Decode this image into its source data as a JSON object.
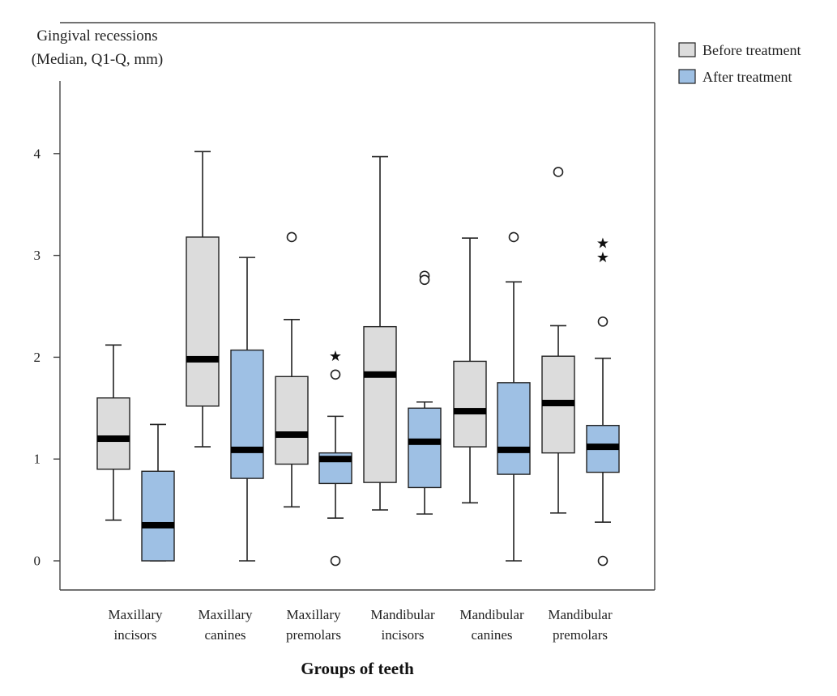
{
  "chart_data": {
    "type": "box",
    "title": "",
    "ylabel_lines": [
      "Gingival recessions",
      "(Median, Q1-Q, mm)"
    ],
    "xlabel": "Groups of teeth",
    "ylim": [
      -0.28,
      5.3
    ],
    "yticks": [
      0,
      1,
      2,
      3,
      4
    ],
    "ytick_labels": [
      "0",
      "1",
      "2",
      "3",
      "4"
    ],
    "categories": [
      {
        "lines": [
          "Maxillary",
          "incisors"
        ]
      },
      {
        "lines": [
          "Maxillary",
          "canines"
        ]
      },
      {
        "lines": [
          "Maxillary",
          "premolars"
        ]
      },
      {
        "lines": [
          "Mandibular",
          "incisors"
        ]
      },
      {
        "lines": [
          "Mandibular",
          "canines"
        ]
      },
      {
        "lines": [
          "Mandibular",
          "premolars"
        ]
      }
    ],
    "series": [
      {
        "name": "Before treatment",
        "color": "#dcdcdc",
        "boxes": [
          {
            "min": 0.4,
            "q1": 0.9,
            "median": 1.2,
            "q3": 1.6,
            "max": 2.12,
            "outliers": [],
            "extremes": []
          },
          {
            "min": 1.12,
            "q1": 1.52,
            "median": 1.98,
            "q3": 3.18,
            "max": 4.02,
            "outliers": [],
            "extremes": []
          },
          {
            "min": 0.53,
            "q1": 0.95,
            "median": 1.24,
            "q3": 1.81,
            "max": 2.37,
            "outliers": [
              3.18
            ],
            "extremes": []
          },
          {
            "min": 0.5,
            "q1": 0.77,
            "median": 1.83,
            "q3": 2.3,
            "max": 3.97,
            "outliers": [],
            "extremes": []
          },
          {
            "min": 0.57,
            "q1": 1.12,
            "median": 1.47,
            "q3": 1.96,
            "max": 3.17,
            "outliers": [],
            "extremes": []
          },
          {
            "min": 0.47,
            "q1": 1.06,
            "median": 1.55,
            "q3": 2.01,
            "max": 2.31,
            "outliers": [
              3.82
            ],
            "extremes": []
          }
        ]
      },
      {
        "name": "After treatment",
        "color": "#9ec0e4",
        "boxes": [
          {
            "min": 0.0,
            "q1": 0.0,
            "median": 0.35,
            "q3": 0.88,
            "max": 1.34,
            "outliers": [],
            "extremes": []
          },
          {
            "min": 0.0,
            "q1": 0.81,
            "median": 1.09,
            "q3": 2.07,
            "max": 2.98,
            "outliers": [],
            "extremes": []
          },
          {
            "min": 0.42,
            "q1": 0.76,
            "median": 1.0,
            "q3": 1.06,
            "max": 1.42,
            "outliers": [
              1.83,
              0.0
            ],
            "extremes": [
              2.01
            ]
          },
          {
            "min": 0.46,
            "q1": 0.72,
            "median": 1.17,
            "q3": 1.5,
            "max": 1.56,
            "outliers": [
              2.8,
              2.76
            ],
            "extremes": []
          },
          {
            "min": 0.0,
            "q1": 0.85,
            "median": 1.09,
            "q3": 1.75,
            "max": 2.74,
            "outliers": [
              3.18
            ],
            "extremes": []
          },
          {
            "min": 0.38,
            "q1": 0.87,
            "median": 1.12,
            "q3": 1.33,
            "max": 1.99,
            "outliers": [
              2.35,
              0.0
            ],
            "extremes": [
              3.12,
              2.98
            ]
          }
        ]
      }
    ],
    "legend": {
      "position": "top-right",
      "entries": [
        {
          "label": "Before treatment",
          "color": "#dcdcdc"
        },
        {
          "label": "After treatment",
          "color": "#9ec0e4"
        }
      ]
    }
  }
}
